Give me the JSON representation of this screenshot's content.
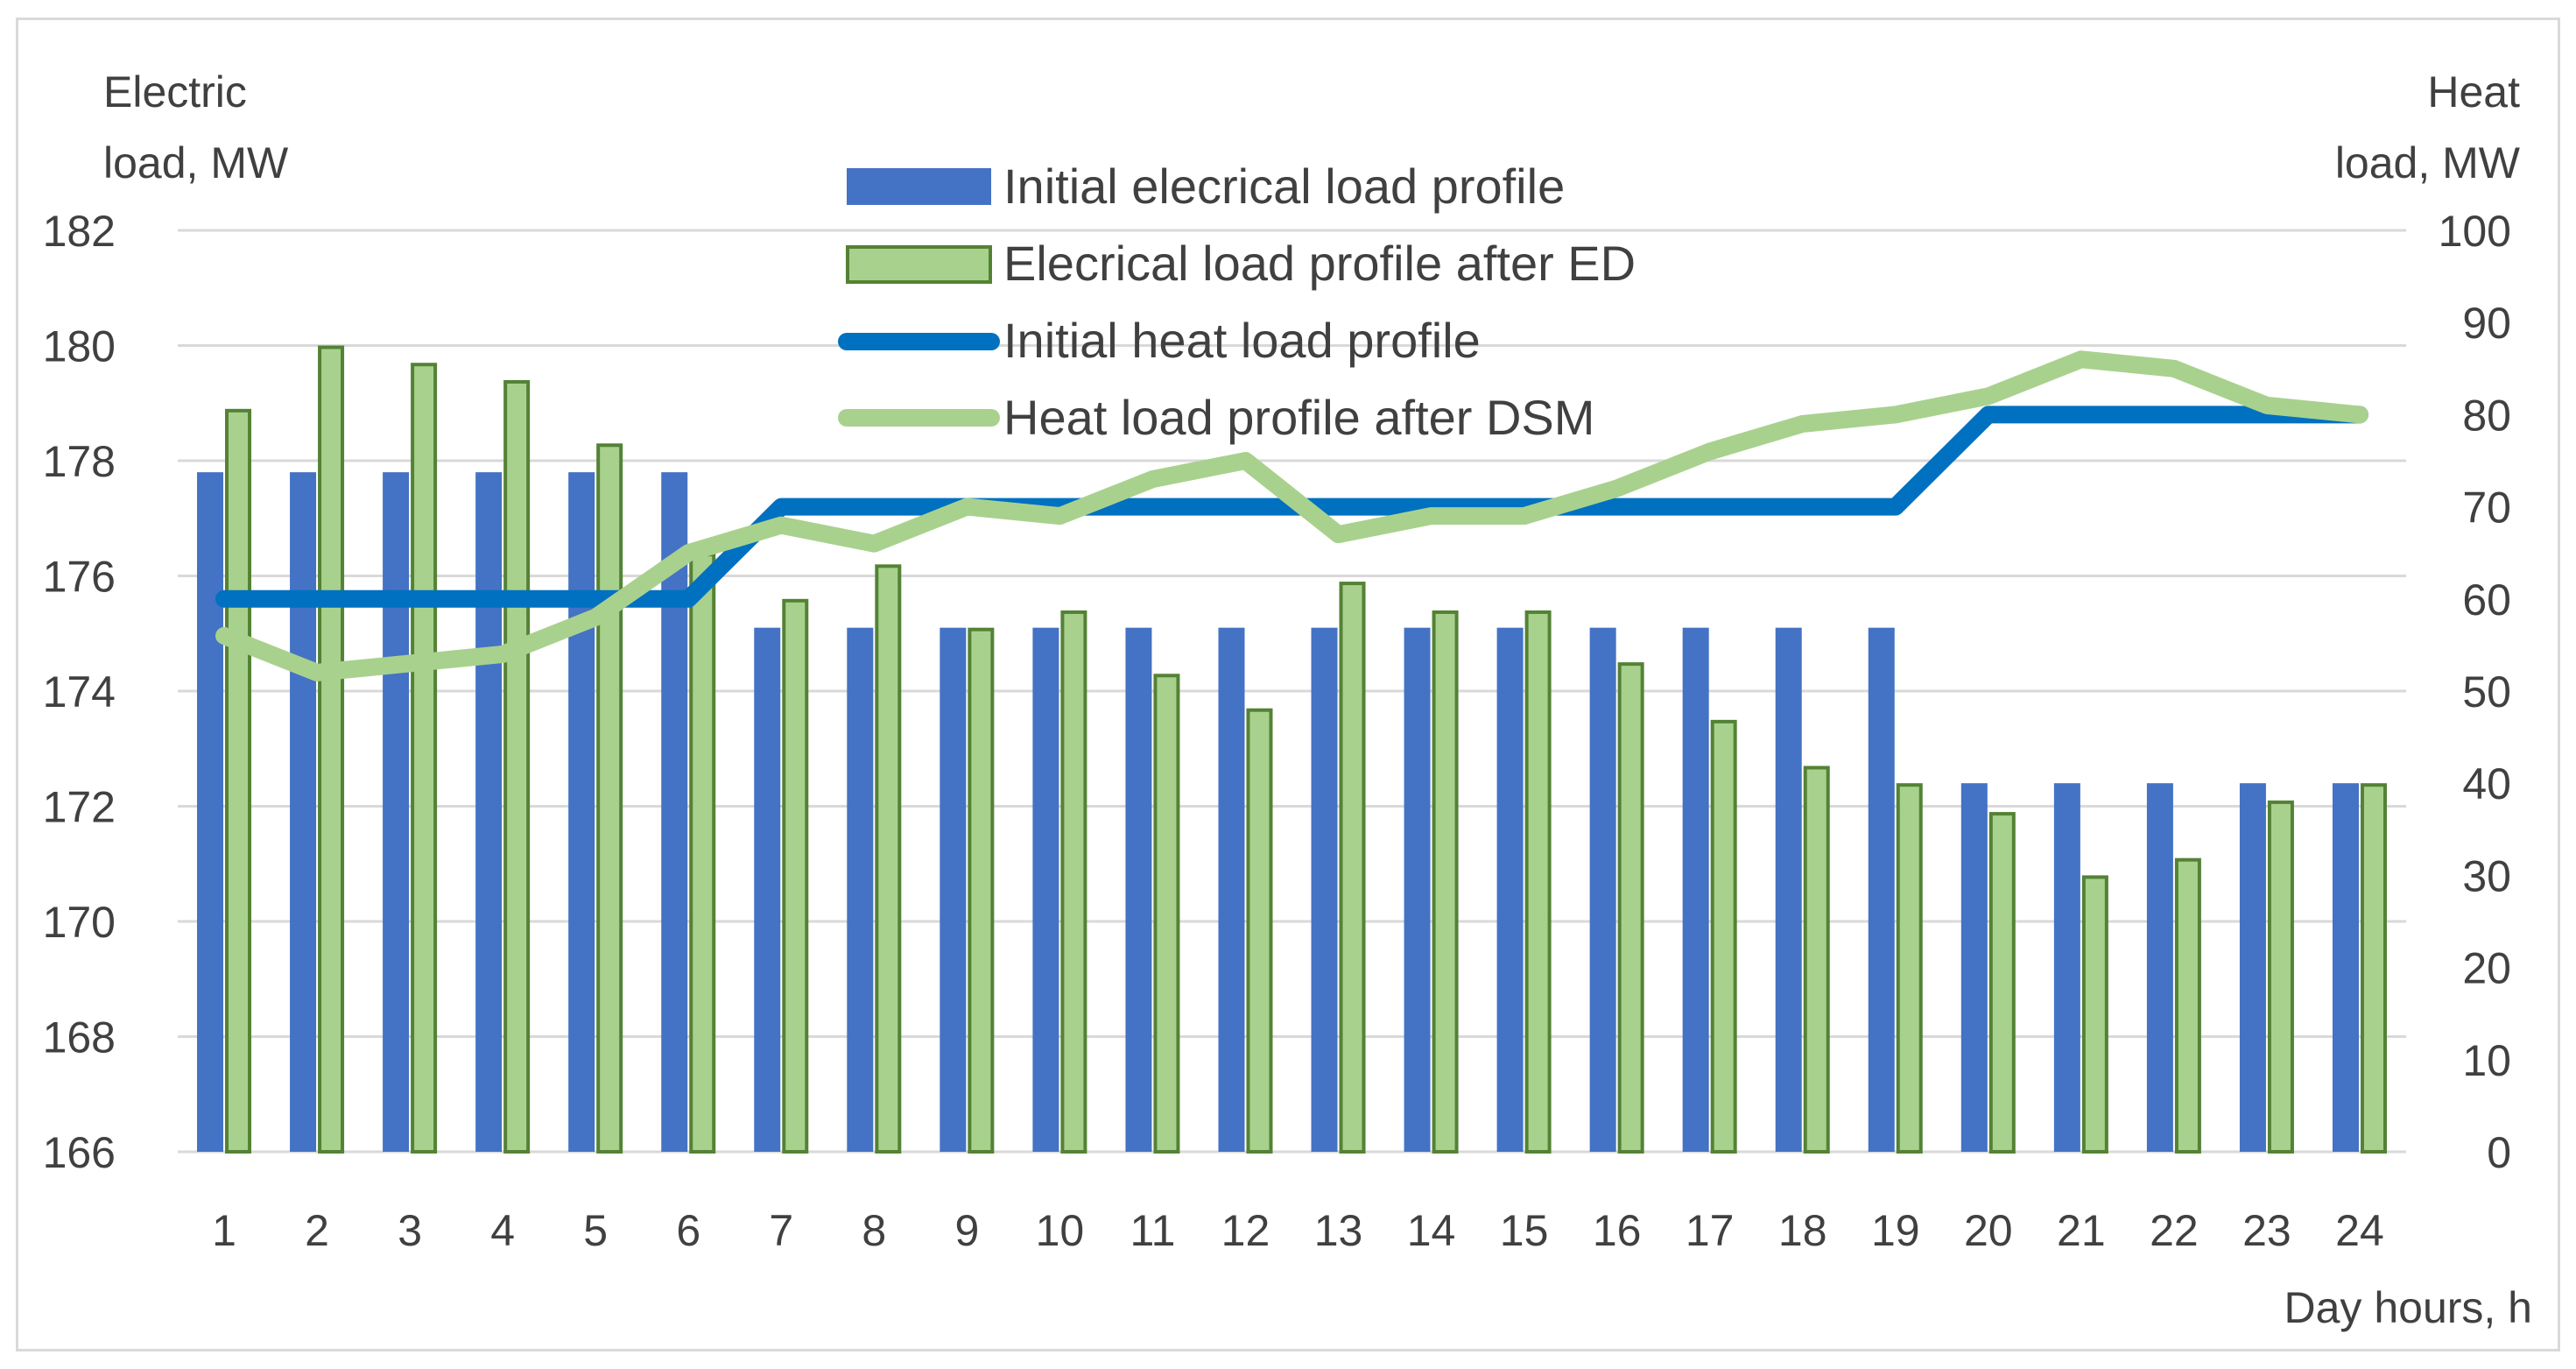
{
  "chart_data": {
    "type": "bar",
    "title": "",
    "xlabel": "Day hours, h",
    "ylabel_left": [
      "Electric",
      "load, MW"
    ],
    "ylabel_right": [
      "Heat",
      "load, MW"
    ],
    "ylim_left": [
      166,
      182
    ],
    "yticks_left": [
      166,
      168,
      170,
      172,
      174,
      176,
      178,
      180,
      182
    ],
    "ylim_right": [
      0,
      100
    ],
    "yticks_right": [
      0,
      10,
      20,
      30,
      40,
      50,
      60,
      70,
      80,
      90,
      100
    ],
    "grid": true,
    "legend_position": "top-center",
    "categories": [
      "1",
      "2",
      "3",
      "4",
      "5",
      "6",
      "7",
      "8",
      "9",
      "10",
      "11",
      "12",
      "13",
      "14",
      "15",
      "16",
      "17",
      "18",
      "19",
      "20",
      "21",
      "22",
      "23",
      "24"
    ],
    "series": [
      {
        "name": "Initial elecrical load profile",
        "kind": "bar",
        "axis": "left",
        "color": "#4472c4",
        "values": [
          177.8,
          177.8,
          177.8,
          177.8,
          177.8,
          177.8,
          175.1,
          175.1,
          175.1,
          175.1,
          175.1,
          175.1,
          175.1,
          175.1,
          175.1,
          175.1,
          175.1,
          175.1,
          175.1,
          172.4,
          172.4,
          172.4,
          172.4,
          172.4
        ]
      },
      {
        "name": "Elecrical load profile after ED",
        "kind": "bar",
        "axis": "left",
        "color": "#a9d18e",
        "edge": "#548235",
        "values": [
          178.9,
          180.0,
          179.7,
          179.4,
          178.3,
          176.4,
          175.6,
          176.2,
          175.1,
          175.4,
          174.3,
          173.7,
          175.9,
          175.4,
          175.4,
          174.5,
          173.5,
          172.7,
          172.4,
          171.9,
          170.8,
          171.1,
          172.1,
          172.4
        ]
      },
      {
        "name": "Initial heat load profile",
        "kind": "line",
        "axis": "right",
        "color": "#0070c0",
        "values": [
          60,
          60,
          60,
          60,
          60,
          60,
          70,
          70,
          70,
          70,
          70,
          70,
          70,
          70,
          70,
          70,
          70,
          70,
          70,
          80,
          80,
          80,
          80,
          80
        ]
      },
      {
        "name": "Heat load profile after DSM",
        "kind": "line",
        "axis": "right",
        "color": "#a9d18e",
        "values": [
          56,
          52,
          53,
          54,
          58,
          65,
          68,
          66,
          70,
          69,
          73,
          75,
          67,
          69,
          69,
          72,
          76,
          79,
          80,
          82,
          86,
          85,
          81,
          80
        ]
      }
    ]
  }
}
